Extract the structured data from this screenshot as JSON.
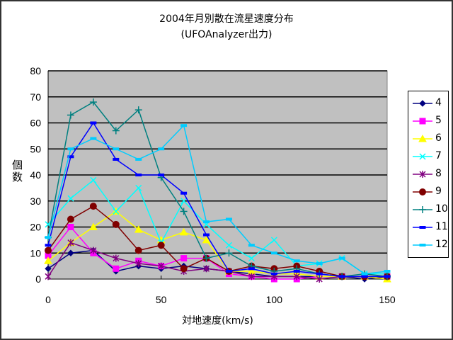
{
  "chart_data": {
    "type": "line",
    "title": "2004年月別散在流星速度分布",
    "subtitle": "(UFOAnalyzer出力)",
    "xlabel": "対地速度(km/s)",
    "ylabel": "個数",
    "xlim": [
      0,
      150
    ],
    "ylim": [
      0,
      80
    ],
    "xticks": [
      0,
      50,
      100,
      150
    ],
    "yticks": [
      0,
      10,
      20,
      30,
      40,
      50,
      60,
      70,
      80
    ],
    "grid": true,
    "plot_background": "#c0c0c0",
    "legend_position": "right",
    "x": [
      0,
      10,
      20,
      30,
      40,
      50,
      60,
      70,
      80,
      90,
      100,
      110,
      120,
      130,
      140,
      150
    ],
    "series": [
      {
        "name": "4",
        "color": "#000080",
        "marker": "diamond",
        "values": [
          4,
          10,
          11,
          3,
          5,
          4,
          5,
          4,
          3,
          2,
          1,
          1,
          1,
          1,
          0,
          1
        ]
      },
      {
        "name": "5",
        "color": "#ff00ff",
        "marker": "square",
        "values": [
          9,
          20,
          10,
          4,
          7,
          5,
          8,
          8,
          2,
          1,
          0,
          0,
          1,
          1,
          1,
          1
        ]
      },
      {
        "name": "6",
        "color": "#ffff00",
        "marker": "triangle",
        "values": [
          7,
          14,
          20,
          26,
          19,
          15,
          18,
          15,
          3,
          3,
          2,
          2,
          1,
          1,
          1,
          0
        ]
      },
      {
        "name": "7",
        "color": "#00ffff",
        "marker": "x",
        "values": [
          21,
          31,
          38,
          26,
          35,
          14,
          30,
          21,
          13,
          8,
          15,
          5,
          6,
          8,
          2,
          2
        ]
      },
      {
        "name": "8",
        "color": "#800080",
        "marker": "star",
        "values": [
          1,
          14,
          11,
          8,
          6,
          5,
          3,
          4,
          3,
          1,
          1,
          1,
          0,
          1,
          1,
          1
        ]
      },
      {
        "name": "9",
        "color": "#800000",
        "marker": "circle",
        "values": [
          11,
          23,
          28,
          21,
          11,
          13,
          4,
          8,
          3,
          5,
          4,
          5,
          3,
          1,
          1,
          1
        ]
      },
      {
        "name": "10",
        "color": "#008080",
        "marker": "plus",
        "values": [
          16,
          63,
          68,
          57,
          65,
          39,
          26,
          8,
          10,
          5,
          3,
          4,
          2,
          1,
          2,
          1
        ]
      },
      {
        "name": "11",
        "color": "#0000ff",
        "marker": "dash",
        "values": [
          13,
          47,
          60,
          46,
          40,
          40,
          33,
          17,
          3,
          4,
          2,
          3,
          2,
          1,
          1,
          1
        ]
      },
      {
        "name": "12",
        "color": "#00ccff",
        "marker": "dash",
        "values": [
          16,
          50,
          54,
          50,
          46,
          50,
          59,
          22,
          23,
          13,
          10,
          7,
          6,
          8,
          2,
          3
        ]
      }
    ]
  }
}
